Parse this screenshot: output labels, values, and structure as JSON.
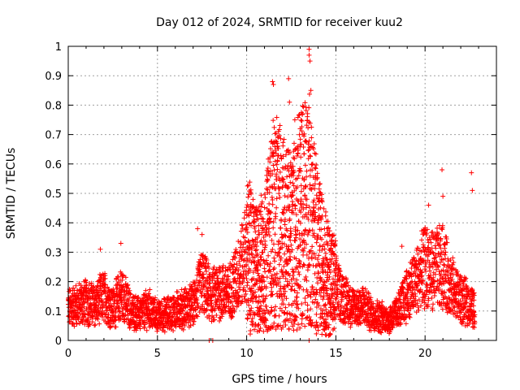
{
  "chart_data": {
    "type": "scatter",
    "title": "Day 012 of 2024, SRMTID for receiver kuu2",
    "xlabel": "GPS time / hours",
    "ylabel": "SRMTID / TECUs",
    "xlim": [
      0,
      24
    ],
    "ylim": [
      0,
      1
    ],
    "xticks": [
      "0",
      "5",
      "10",
      "15",
      "20"
    ],
    "yticks": [
      "0",
      "0.1",
      "0.2",
      "0.3",
      "0.4",
      "0.5",
      "0.6",
      "0.7",
      "0.8",
      "0.9",
      "1"
    ],
    "grid": true,
    "marker": "+",
    "color": "#ff0000",
    "trend": [
      [
        0.0,
        0.11
      ],
      [
        0.5,
        0.12
      ],
      [
        1.0,
        0.13
      ],
      [
        1.5,
        0.12
      ],
      [
        2.0,
        0.15
      ],
      [
        2.5,
        0.11
      ],
      [
        3.0,
        0.16
      ],
      [
        3.5,
        0.1
      ],
      [
        4.0,
        0.09
      ],
      [
        4.5,
        0.11
      ],
      [
        5.0,
        0.08
      ],
      [
        5.5,
        0.09
      ],
      [
        6.0,
        0.1
      ],
      [
        6.5,
        0.11
      ],
      [
        7.0,
        0.12
      ],
      [
        7.5,
        0.2
      ],
      [
        8.0,
        0.15
      ],
      [
        8.5,
        0.17
      ],
      [
        9.0,
        0.16
      ],
      [
        9.5,
        0.22
      ],
      [
        10.0,
        0.3
      ],
      [
        10.5,
        0.24
      ],
      [
        11.0,
        0.27
      ],
      [
        11.5,
        0.4
      ],
      [
        12.0,
        0.38
      ],
      [
        12.5,
        0.33
      ],
      [
        13.0,
        0.42
      ],
      [
        13.5,
        0.45
      ],
      [
        14.0,
        0.3
      ],
      [
        14.5,
        0.22
      ],
      [
        15.0,
        0.18
      ],
      [
        15.5,
        0.14
      ],
      [
        16.0,
        0.11
      ],
      [
        16.5,
        0.12
      ],
      [
        17.0,
        0.09
      ],
      [
        17.5,
        0.08
      ],
      [
        18.0,
        0.07
      ],
      [
        18.5,
        0.1
      ],
      [
        19.0,
        0.16
      ],
      [
        19.5,
        0.2
      ],
      [
        20.0,
        0.25
      ],
      [
        20.5,
        0.24
      ],
      [
        21.0,
        0.25
      ],
      [
        21.5,
        0.18
      ],
      [
        22.0,
        0.14
      ],
      [
        22.5,
        0.12
      ],
      [
        22.8,
        0.1
      ]
    ],
    "spikes": [
      [
        1.8,
        0.31
      ],
      [
        2.95,
        0.33
      ],
      [
        7.25,
        0.38
      ],
      [
        7.5,
        0.36
      ],
      [
        10.8,
        0.39
      ],
      [
        11.45,
        0.88
      ],
      [
        11.5,
        0.87
      ],
      [
        12.35,
        0.89
      ],
      [
        12.4,
        0.81
      ],
      [
        12.7,
        0.75
      ],
      [
        13.0,
        0.72
      ],
      [
        13.5,
        0.99
      ],
      [
        13.5,
        0.97
      ],
      [
        13.55,
        0.95
      ],
      [
        13.6,
        0.85
      ],
      [
        14.5,
        0.38
      ],
      [
        18.7,
        0.32
      ],
      [
        20.2,
        0.46
      ],
      [
        20.95,
        0.58
      ],
      [
        21.0,
        0.49
      ],
      [
        22.6,
        0.57
      ],
      [
        22.65,
        0.51
      ]
    ],
    "zero_points": [
      [
        7.9,
        0.0
      ],
      [
        8.1,
        0.0
      ],
      [
        13.5,
        0.0
      ]
    ]
  }
}
